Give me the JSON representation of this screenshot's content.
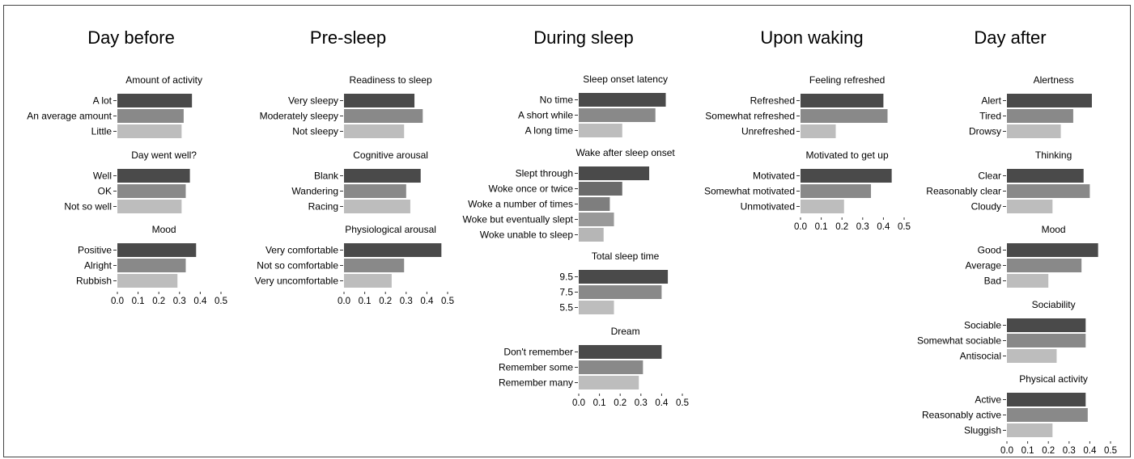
{
  "colors": {
    "level_1": "#4a4a4a",
    "level_2": "#898989",
    "level_3": "#bdbdbd",
    "axis": "#333333",
    "frame": "#444444"
  },
  "chart_data": {
    "type": "bar",
    "orientation": "horizontal",
    "xlim": [
      0,
      0.5
    ],
    "ticks": [
      "0.0",
      "0.1",
      "0.2",
      "0.3",
      "0.4",
      "0.5"
    ],
    "grid": false,
    "legend": "none",
    "columns": [
      {
        "title": "Day before",
        "panels": [
          {
            "title": "Amount of activity",
            "categories": [
              "A lot",
              "An average amount",
              "Little"
            ],
            "values": [
              0.36,
              0.32,
              0.31
            ]
          },
          {
            "title": "Day went well?",
            "categories": [
              "Well",
              "OK",
              "Not so well"
            ],
            "values": [
              0.35,
              0.33,
              0.31
            ]
          },
          {
            "title": "Mood",
            "categories": [
              "Positive",
              "Alright",
              "Rubbish"
            ],
            "values": [
              0.38,
              0.33,
              0.29
            ]
          }
        ]
      },
      {
        "title": "Pre-sleep",
        "panels": [
          {
            "title": "Readiness to sleep",
            "categories": [
              "Very sleepy",
              "Moderately sleepy",
              "Not sleepy"
            ],
            "values": [
              0.34,
              0.38,
              0.29
            ]
          },
          {
            "title": "Cognitive arousal",
            "categories": [
              "Blank",
              "Wandering",
              "Racing"
            ],
            "values": [
              0.37,
              0.3,
              0.32
            ]
          },
          {
            "title": "Physiological arousal",
            "categories": [
              "Very comfortable",
              "Not so comfortable",
              "Very uncomfortable"
            ],
            "values": [
              0.47,
              0.29,
              0.23
            ]
          }
        ]
      },
      {
        "title": "During sleep",
        "panels": [
          {
            "title": "Sleep onset latency",
            "categories": [
              "No time",
              "A short while",
              "A long time"
            ],
            "values": [
              0.42,
              0.37,
              0.21
            ]
          },
          {
            "title": "Wake after sleep onset",
            "categories": [
              "Slept through",
              "Woke once or twice",
              "Woke a number of times",
              "Woke but eventually slept",
              "Woke unable to sleep"
            ],
            "values": [
              0.34,
              0.21,
              0.15,
              0.17,
              0.12
            ]
          },
          {
            "title": "Total sleep time",
            "categories": [
              "9.5",
              "7.5",
              "5.5"
            ],
            "values": [
              0.43,
              0.4,
              0.17
            ]
          },
          {
            "title": "Dream",
            "categories": [
              "Don't remember",
              "Remember some",
              "Remember many"
            ],
            "values": [
              0.4,
              0.31,
              0.29
            ]
          }
        ]
      },
      {
        "title": "Upon waking",
        "panels": [
          {
            "title": "Feeling refreshed",
            "categories": [
              "Refreshed",
              "Somewhat refreshed",
              "Unrefreshed"
            ],
            "values": [
              0.4,
              0.42,
              0.17
            ]
          },
          {
            "title": "Motivated to get up",
            "categories": [
              "Motivated",
              "Somewhat motivated",
              "Unmotivated"
            ],
            "values": [
              0.44,
              0.34,
              0.21
            ]
          }
        ]
      },
      {
        "title": "Day after",
        "panels": [
          {
            "title": "Alertness",
            "categories": [
              "Alert",
              "Tired",
              "Drowsy"
            ],
            "values": [
              0.41,
              0.32,
              0.26
            ]
          },
          {
            "title": "Thinking",
            "categories": [
              "Clear",
              "Reasonably clear",
              "Cloudy"
            ],
            "values": [
              0.37,
              0.4,
              0.22
            ]
          },
          {
            "title": "Mood",
            "categories": [
              "Good",
              "Average",
              "Bad"
            ],
            "values": [
              0.44,
              0.36,
              0.2
            ]
          },
          {
            "title": "Sociability",
            "categories": [
              "Sociable",
              "Somewhat sociable",
              "Antisocial"
            ],
            "values": [
              0.38,
              0.38,
              0.24
            ]
          },
          {
            "title": "Physical activity",
            "categories": [
              "Active",
              "Reasonably active",
              "Sluggish"
            ],
            "values": [
              0.38,
              0.39,
              0.22
            ]
          }
        ]
      }
    ]
  }
}
